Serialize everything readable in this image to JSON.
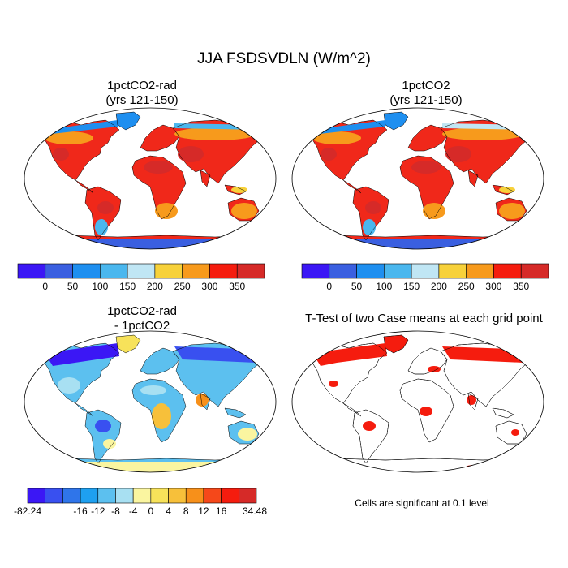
{
  "title": "JJA FSDSVDLN (W/m^2)",
  "panels": [
    {
      "title_line1": "1pctCO2-rad",
      "title_line2": "(yrs 121-150)",
      "type": "absolute"
    },
    {
      "title_line1": "1pctCO2",
      "title_line2": "(yrs 121-150)",
      "type": "absolute"
    },
    {
      "title_line1": "1pctCO2-rad",
      "title_line2": "- 1pctCO2",
      "type": "difference"
    },
    {
      "title_line1": "T-Test of two Case means at each grid point",
      "title_line2": "",
      "type": "ttest"
    }
  ],
  "colorbar_abs": {
    "colors": [
      "#3b17f5",
      "#3a5fe0",
      "#1e8ff0",
      "#4ab7ee",
      "#c0e6f4",
      "#f7d13a",
      "#f79a1c",
      "#f51c0e",
      "#d62a28"
    ],
    "labels": [
      "0",
      "50",
      "100",
      "150",
      "200",
      "250",
      "300",
      "350"
    ]
  },
  "colorbar_diff": {
    "colors": [
      "#3b17f5",
      "#3950f0",
      "#2f75ea",
      "#1ea0f0",
      "#5cc0ef",
      "#a8e0f2",
      "#faf5a0",
      "#f7e25a",
      "#f7c03a",
      "#f7901a",
      "#f5481a",
      "#f51c0e",
      "#d62a28"
    ],
    "labels": [
      "-82.24",
      "-16",
      "-12",
      "-8",
      "-4",
      "0",
      "4",
      "8",
      "12",
      "16",
      "34.48"
    ]
  },
  "ttest_note": "Cells are significant at 0.1 level"
}
